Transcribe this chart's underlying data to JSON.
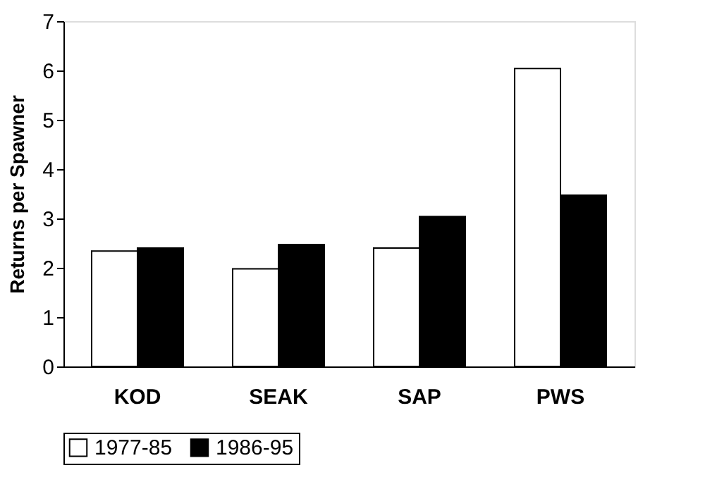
{
  "chart_data": {
    "type": "bar",
    "ylabel": "Returns per Spawner",
    "categories": [
      "KOD",
      "SEAK",
      "SAP",
      "PWS"
    ],
    "series": [
      {
        "name": "1977-85",
        "color": "#ffffff",
        "values": [
          2.34,
          1.98,
          2.4,
          6.04
        ]
      },
      {
        "name": "1986-95",
        "color": "#000000",
        "values": [
          2.4,
          2.47,
          3.04,
          3.47
        ]
      }
    ],
    "ylim": [
      0,
      7
    ],
    "yticks": [
      0,
      1,
      2,
      3,
      4,
      5,
      6,
      7
    ],
    "grid": false,
    "legend": "bottom"
  }
}
